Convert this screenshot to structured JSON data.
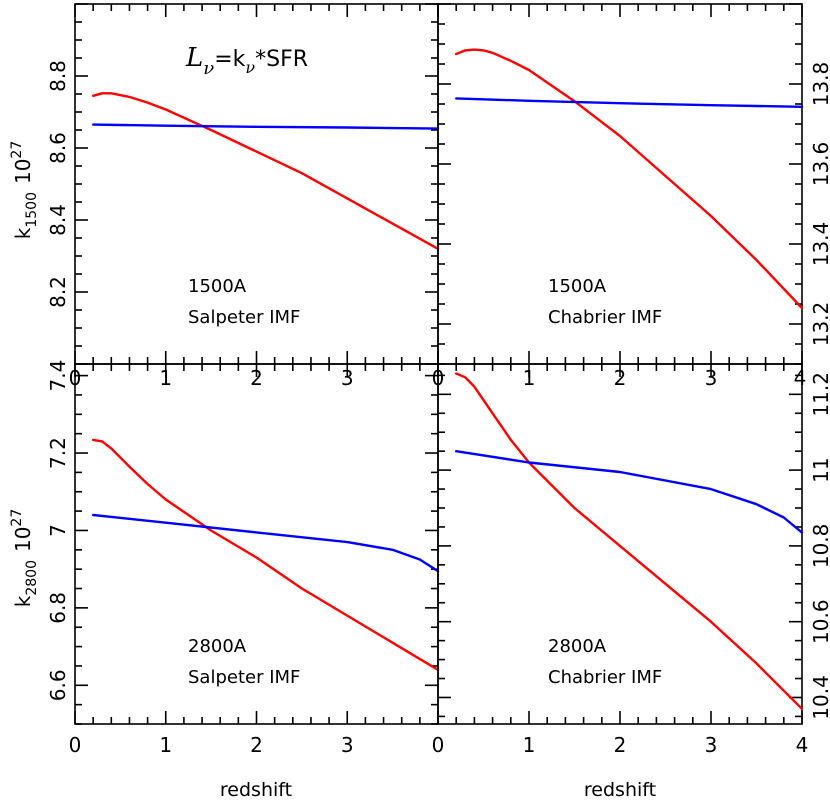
{
  "figure": {
    "equation": {
      "L": "L",
      "nu": "ν",
      "rest": "=k",
      "rest_nu": "ν",
      "rest2": "*SFR"
    },
    "xlabel": "redshift",
    "ylabel_top": {
      "base": "k",
      "sub": "1500",
      "mult": "10",
      "exp": "27"
    },
    "ylabel_bottom": {
      "base": "k",
      "sub": "2800",
      "mult": "10",
      "exp": "27"
    },
    "colors": {
      "series_red": "#ff0000",
      "series_blue": "#0000ff",
      "axes": "#000000"
    }
  },
  "chart_data": [
    {
      "type": "line",
      "panel": "top-left",
      "annotation_lines": [
        "1500A",
        "Salpeter IMF"
      ],
      "xlim": [
        0,
        4
      ],
      "ylim": [
        8.0,
        9.0
      ],
      "yticks": [
        8.2,
        8.4,
        8.6,
        8.8
      ],
      "ytick_side": "left",
      "series": [
        {
          "color": "#ff0000",
          "x": [
            0.2,
            0.3,
            0.4,
            0.6,
            0.8,
            1.0,
            1.5,
            2.0,
            2.5,
            3.0,
            3.5,
            4.0
          ],
          "y": [
            8.745,
            8.752,
            8.752,
            8.742,
            8.726,
            8.707,
            8.65,
            8.59,
            8.53,
            8.46,
            8.39,
            8.32
          ]
        },
        {
          "color": "#0000ff",
          "x": [
            0.2,
            1.0,
            2.0,
            3.0,
            4.0
          ],
          "y": [
            8.665,
            8.662,
            8.659,
            8.657,
            8.654
          ]
        }
      ]
    },
    {
      "type": "line",
      "panel": "top-right",
      "annotation_lines": [
        "1500A",
        "Chabrier IMF"
      ],
      "xlim": [
        0,
        4
      ],
      "ylim": [
        13.1,
        14.0
      ],
      "yticks": [
        13.2,
        13.4,
        13.6,
        13.8
      ],
      "ytick_side": "right",
      "series": [
        {
          "color": "#ff0000",
          "x": [
            0.2,
            0.3,
            0.4,
            0.5,
            0.6,
            0.8,
            1.0,
            1.5,
            2.0,
            2.5,
            3.0,
            3.5,
            4.0
          ],
          "y": [
            13.875,
            13.884,
            13.886,
            13.884,
            13.878,
            13.858,
            13.835,
            13.757,
            13.67,
            13.57,
            13.47,
            13.36,
            13.24
          ]
        },
        {
          "color": "#0000ff",
          "x": [
            0.2,
            1.0,
            2.0,
            3.0,
            4.0
          ],
          "y": [
            13.764,
            13.758,
            13.752,
            13.747,
            13.743
          ]
        }
      ]
    },
    {
      "type": "line",
      "panel": "bottom-left",
      "annotation_lines": [
        "2800A",
        "Salpeter IMF"
      ],
      "xlim": [
        0,
        4
      ],
      "xticks": [
        0,
        1,
        2,
        3
      ],
      "ylim": [
        6.5,
        7.43
      ],
      "yticks": [
        6.6,
        6.8,
        7,
        7.2,
        7.4
      ],
      "ytick_side": "left",
      "series": [
        {
          "color": "#ff0000",
          "x": [
            0.2,
            0.3,
            0.4,
            0.6,
            0.8,
            1.0,
            1.5,
            2.0,
            2.5,
            3.0,
            3.5,
            4.0
          ],
          "y": [
            7.234,
            7.23,
            7.212,
            7.165,
            7.12,
            7.08,
            7.0,
            6.93,
            6.85,
            6.78,
            6.71,
            6.64
          ]
        },
        {
          "color": "#0000ff",
          "x": [
            0.2,
            1.0,
            2.0,
            3.0,
            3.5,
            3.8,
            4.0
          ],
          "y": [
            7.04,
            7.02,
            6.995,
            6.97,
            6.95,
            6.925,
            6.895
          ]
        }
      ]
    },
    {
      "type": "line",
      "panel": "bottom-right",
      "annotation_lines": [
        "2800A",
        "Chabrier IMF"
      ],
      "xlim": [
        0,
        4
      ],
      "xticks": [
        0,
        1,
        2,
        3,
        4
      ],
      "ylim": [
        10.33,
        11.28
      ],
      "yticks": [
        10.4,
        10.6,
        10.8,
        11,
        11.2
      ],
      "ytick_side": "right",
      "series": [
        {
          "color": "#ff0000",
          "x": [
            0.2,
            0.3,
            0.4,
            0.6,
            0.8,
            1.0,
            1.5,
            2.0,
            2.5,
            3.0,
            3.5,
            4.0
          ],
          "y": [
            11.255,
            11.245,
            11.22,
            11.15,
            11.08,
            11.02,
            10.9,
            10.8,
            10.7,
            10.6,
            10.49,
            10.37
          ]
        },
        {
          "color": "#0000ff",
          "x": [
            0.2,
            1.0,
            2.0,
            3.0,
            3.5,
            3.8,
            4.0
          ],
          "y": [
            11.05,
            11.02,
            10.995,
            10.95,
            10.91,
            10.875,
            10.835
          ]
        }
      ]
    }
  ]
}
